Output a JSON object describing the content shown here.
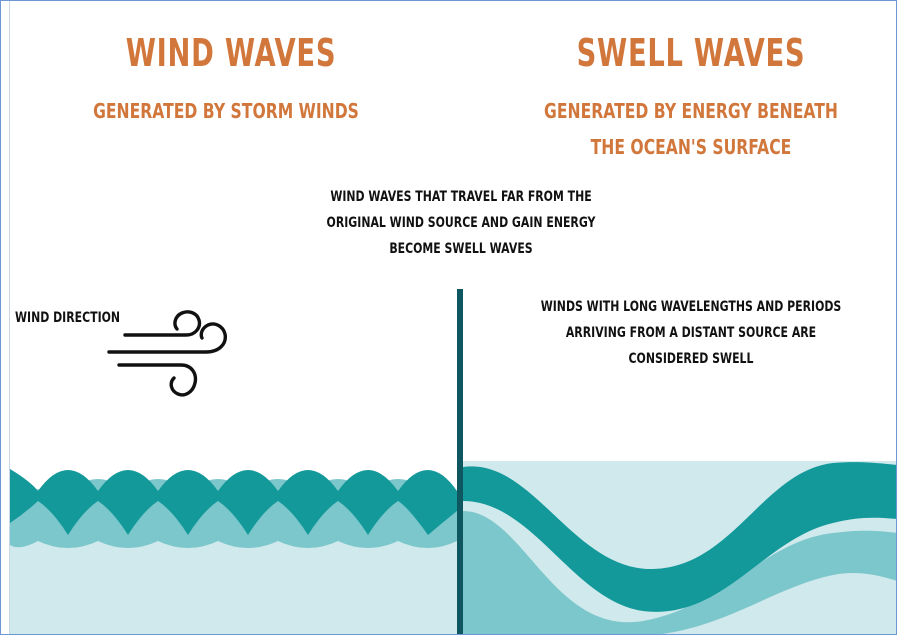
{
  "left_panel": {
    "title": "WIND WAVES",
    "subtitle": "GENERATED BY STORM WINDS",
    "wind_label": "WIND DIRECTION"
  },
  "right_panel": {
    "title": "SWELL WAVES",
    "subtitle_line1": "GENERATED BY ENERGY BENEATH",
    "subtitle_line2": "THE OCEAN'S SURFACE",
    "note_line1": "WINDS WITH LONG WAVELENGTHS AND PERIODS",
    "note_line2": "ARRIVING FROM A DISTANT SOURCE ARE",
    "note_line3": "CONSIDERED SWELL"
  },
  "center_note": {
    "line1": "WIND WAVES THAT TRAVEL FAR FROM THE",
    "line2": "ORIGINAL WIND SOURCE AND GAIN ENERGY",
    "line3": "BECOME SWELL WAVES"
  },
  "colors": {
    "heading": "#d2773b",
    "wave_dark": "#14999b",
    "wave_mid": "#7cc7cb",
    "wave_light": "#cfe9ec",
    "divider": "#0f5760"
  },
  "icons": {
    "wind": "wind-icon"
  }
}
